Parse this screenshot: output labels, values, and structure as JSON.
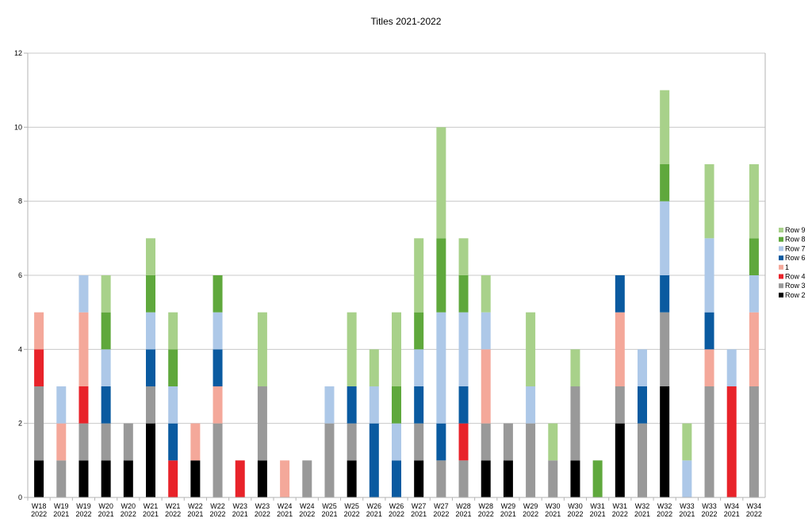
{
  "chart_data": {
    "type": "bar",
    "stacked": true,
    "title": "Titles 2021-2022",
    "xlabel": "",
    "ylabel": "",
    "ylim": [
      0,
      12
    ],
    "yticks": [
      0,
      2,
      4,
      6,
      8,
      10,
      12
    ],
    "grid": true,
    "legend_position": "right",
    "categories": [
      [
        "W18",
        "2022"
      ],
      [
        "W19",
        "2021"
      ],
      [
        "W19",
        "2022"
      ],
      [
        "W20",
        "2021"
      ],
      [
        "W20",
        "2022"
      ],
      [
        "W21",
        "2021"
      ],
      [
        "W21",
        "2022"
      ],
      [
        "W22",
        "2021"
      ],
      [
        "W22",
        "2022"
      ],
      [
        "W23",
        "2021"
      ],
      [
        "W23",
        "2022"
      ],
      [
        "W24",
        "2021"
      ],
      [
        "W24",
        "2022"
      ],
      [
        "W25",
        "2021"
      ],
      [
        "W25",
        "2022"
      ],
      [
        "W26",
        "2021"
      ],
      [
        "W26",
        "2022"
      ],
      [
        "W27",
        "2021"
      ],
      [
        "W27",
        "2022"
      ],
      [
        "W28",
        "2021"
      ],
      [
        "W28",
        "2022"
      ],
      [
        "W29",
        "2021"
      ],
      [
        "W29",
        "2022"
      ],
      [
        "W30",
        "2021"
      ],
      [
        "W30",
        "2022"
      ],
      [
        "W31",
        "2021"
      ],
      [
        "W31",
        "2022"
      ],
      [
        "W32",
        "2021"
      ],
      [
        "W32",
        "2022"
      ],
      [
        "W33",
        "2021"
      ],
      [
        "W33",
        "2022"
      ],
      [
        "W34",
        "2021"
      ],
      [
        "W34",
        "2022"
      ]
    ],
    "series": [
      {
        "name": "Row 2",
        "color": "#000000",
        "values": [
          1,
          0,
          1,
          1,
          1,
          2,
          0,
          1,
          0,
          0,
          1,
          0,
          0,
          0,
          1,
          0,
          0,
          1,
          0,
          0,
          1,
          1,
          0,
          0,
          1,
          0,
          2,
          0,
          3,
          0,
          0,
          0,
          0
        ]
      },
      {
        "name": "Row 3",
        "color": "#999999",
        "values": [
          2,
          1,
          1,
          1,
          1,
          1,
          0,
          0,
          2,
          0,
          2,
          0,
          1,
          2,
          1,
          0,
          0,
          1,
          1,
          1,
          1,
          1,
          2,
          1,
          2,
          0,
          1,
          2,
          2,
          0,
          3,
          0,
          3
        ]
      },
      {
        "name": "Row 4",
        "color": "#e8232a",
        "values": [
          1,
          0,
          1,
          0,
          0,
          0,
          1,
          0,
          0,
          1,
          0,
          0,
          0,
          0,
          0,
          0,
          0,
          0,
          0,
          1,
          0,
          0,
          0,
          0,
          0,
          0,
          0,
          0,
          0,
          0,
          0,
          3,
          0
        ]
      },
      {
        "name": "1",
        "color": "#f4a89a",
        "values": [
          1,
          1,
          2,
          0,
          0,
          0,
          0,
          1,
          1,
          0,
          0,
          1,
          0,
          0,
          0,
          0,
          0,
          0,
          0,
          0,
          2,
          0,
          0,
          0,
          0,
          0,
          2,
          0,
          0,
          0,
          1,
          0,
          2
        ]
      },
      {
        "name": "Row 6",
        "color": "#0a5aa0",
        "values": [
          0,
          0,
          0,
          1,
          0,
          1,
          1,
          0,
          1,
          0,
          0,
          0,
          0,
          0,
          1,
          2,
          1,
          1,
          1,
          1,
          0,
          0,
          0,
          0,
          0,
          0,
          1,
          1,
          1,
          0,
          1,
          0,
          0
        ]
      },
      {
        "name": "Row 7",
        "color": "#adc8e8",
        "values": [
          0,
          1,
          1,
          1,
          0,
          1,
          1,
          0,
          1,
          0,
          0,
          0,
          0,
          1,
          0,
          1,
          1,
          1,
          3,
          2,
          1,
          0,
          1,
          0,
          0,
          0,
          0,
          1,
          2,
          1,
          2,
          1,
          1
        ]
      },
      {
        "name": "Row 8",
        "color": "#5fa83c",
        "values": [
          0,
          0,
          0,
          1,
          0,
          1,
          1,
          0,
          1,
          0,
          0,
          0,
          0,
          0,
          0,
          0,
          1,
          1,
          2,
          1,
          0,
          0,
          0,
          0,
          0,
          1,
          0,
          0,
          1,
          0,
          0,
          0,
          1
        ]
      },
      {
        "name": "Row 9",
        "color": "#a8d18a",
        "values": [
          0,
          0,
          0,
          1,
          0,
          1,
          1,
          0,
          0,
          0,
          2,
          0,
          0,
          0,
          2,
          1,
          2,
          2,
          3,
          1,
          1,
          0,
          2,
          1,
          1,
          0,
          0,
          0,
          2,
          1,
          2,
          0,
          2
        ]
      }
    ]
  }
}
